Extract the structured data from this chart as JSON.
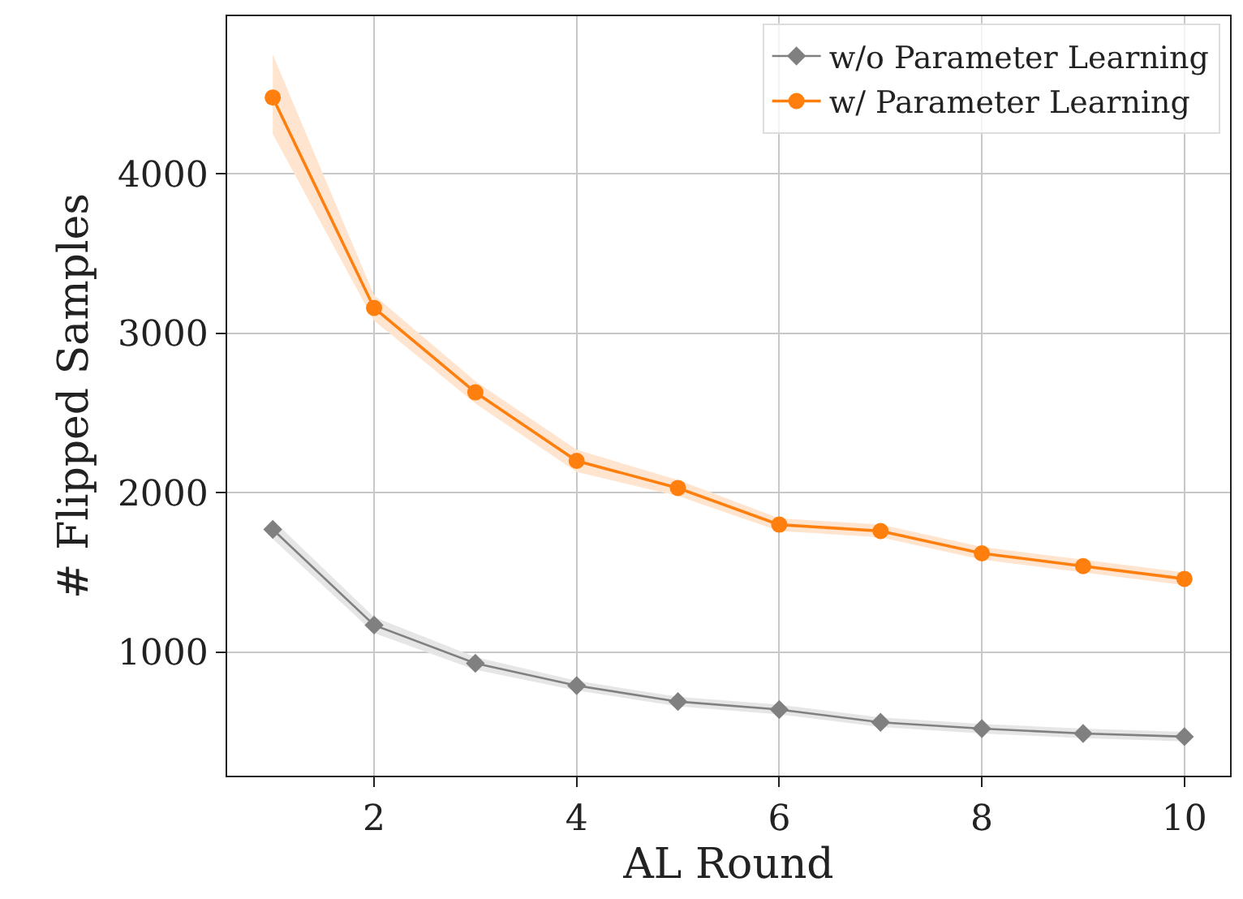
{
  "chart_data": {
    "type": "line",
    "xlabel": "AL Round",
    "ylabel": "# Flipped Samples",
    "x": [
      1,
      2,
      3,
      4,
      5,
      6,
      7,
      8,
      9,
      10
    ],
    "series": [
      {
        "name": "w/o Parameter Learning",
        "color": "#808080",
        "marker": "diamond",
        "values": [
          1770,
          1170,
          930,
          790,
          690,
          640,
          560,
          520,
          490,
          470
        ],
        "lower": [
          1710,
          1120,
          890,
          760,
          660,
          610,
          530,
          490,
          460,
          440
        ],
        "upper": [
          1830,
          1220,
          970,
          820,
          720,
          670,
          590,
          550,
          520,
          500
        ]
      },
      {
        "name": "w/ Parameter Learning",
        "color": "#ff7f0e",
        "marker": "circle",
        "values": [
          4480,
          3160,
          2630,
          2200,
          2030,
          1800,
          1760,
          1620,
          1540,
          1460
        ],
        "lower": [
          4250,
          3080,
          2560,
          2130,
          1980,
          1760,
          1720,
          1580,
          1500,
          1420
        ],
        "upper": [
          4750,
          3240,
          2700,
          2270,
          2080,
          1840,
          1800,
          1660,
          1580,
          1500
        ]
      }
    ],
    "xlim": [
      0.55,
      10.45
    ],
    "xticks": [
      2,
      4,
      6,
      8,
      10
    ],
    "ylim": [
      225,
      4990
    ],
    "yticks": [
      1000,
      2000,
      3000,
      4000
    ],
    "grid": true,
    "legend": "top right",
    "line_style": "solid"
  }
}
